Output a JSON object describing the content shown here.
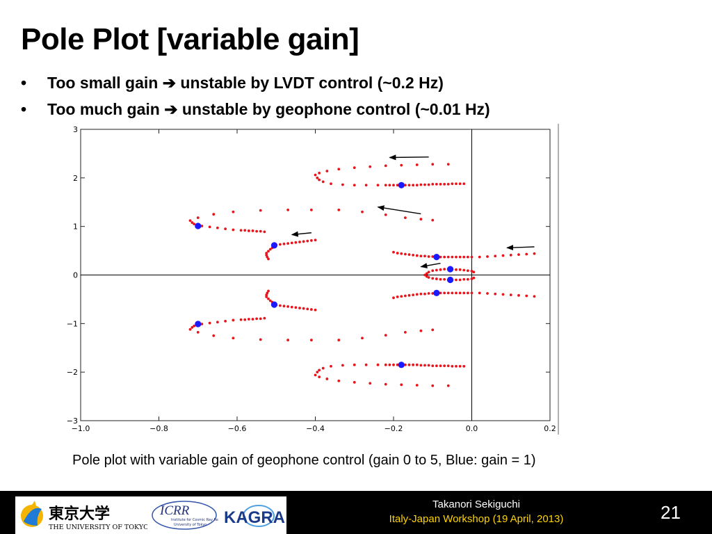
{
  "slide": {
    "title": "Pole Plot [variable gain]",
    "bullets": [
      {
        "before": "Too small gain",
        "after": "unstable by LVDT control (~0.2 Hz)"
      },
      {
        "before": "Too much gain",
        "after": "unstable by geophone control (~0.01 Hz)"
      }
    ],
    "bullet_glyph": "•",
    "arrow_glyph": "➔",
    "caption": "Pole plot with variable gain of geophone control (gain 0 to 5, Blue: gain = 1)"
  },
  "footer": {
    "author": "Takanori Sekiguchi",
    "event": "Italy-Japan Workshop (19 April, 2013)",
    "page": "21",
    "logos": {
      "utokyo_jp": "東京大学",
      "utokyo_en": "THE UNIVERSITY OF TOKYO",
      "icrr": "ICRR",
      "icrr_sub1": "Institute for Cosmic Ray Research",
      "icrr_sub2": "University of Tokyo",
      "kagra": "KAGRA"
    }
  },
  "chart_data": {
    "type": "scatter",
    "title": "",
    "xlabel": "",
    "ylabel": "",
    "xlim": [
      -1.0,
      0.2
    ],
    "ylim": [
      -3,
      3
    ],
    "xticks": [
      -1.0,
      -0.8,
      -0.6,
      -0.4,
      -0.2,
      0.0,
      0.2
    ],
    "xtick_labels": [
      "−1.0",
      "−0.8",
      "−0.6",
      "−0.4",
      "−0.2",
      "0.0",
      "0.2"
    ],
    "yticks": [
      -3,
      -2,
      -1,
      0,
      1,
      2,
      3
    ],
    "ytick_labels": [
      "−3",
      "−2",
      "−1",
      "0",
      "1",
      "2",
      "3"
    ],
    "grid": false,
    "colors": {
      "locus": "#e8141b",
      "gain_one": "#1a1aff",
      "arrow": "#000000",
      "axis": "#000000"
    },
    "series": [
      {
        "marker": "dot",
        "values": [
          [
            -0.4,
            2.06
          ],
          [
            -0.395,
            2.0
          ],
          [
            -0.39,
            1.96
          ],
          [
            -0.38,
            1.92
          ],
          [
            -0.36,
            1.88
          ],
          [
            -0.33,
            1.86
          ],
          [
            -0.3,
            1.85
          ],
          [
            -0.27,
            1.85
          ],
          [
            -0.24,
            1.85
          ],
          [
            -0.22,
            1.85
          ],
          [
            -0.21,
            1.85
          ],
          [
            -0.2,
            1.85
          ],
          [
            -0.19,
            1.85
          ],
          [
            -0.18,
            1.85
          ],
          [
            -0.17,
            1.85
          ],
          [
            -0.16,
            1.85
          ],
          [
            -0.15,
            1.85
          ],
          [
            -0.14,
            1.85
          ],
          [
            -0.13,
            1.86
          ],
          [
            -0.12,
            1.86
          ],
          [
            -0.11,
            1.86
          ],
          [
            -0.1,
            1.87
          ],
          [
            -0.09,
            1.87
          ],
          [
            -0.08,
            1.87
          ],
          [
            -0.07,
            1.87
          ],
          [
            -0.06,
            1.87
          ],
          [
            -0.05,
            1.88
          ],
          [
            -0.04,
            1.88
          ],
          [
            -0.03,
            1.88
          ],
          [
            -0.02,
            1.88
          ],
          [
            -0.39,
            2.1
          ],
          [
            -0.37,
            2.14
          ],
          [
            -0.34,
            2.18
          ],
          [
            -0.3,
            2.21
          ],
          [
            -0.26,
            2.23
          ],
          [
            -0.22,
            2.25
          ],
          [
            -0.18,
            2.26
          ],
          [
            -0.14,
            2.27
          ],
          [
            -0.1,
            2.28
          ],
          [
            -0.06,
            2.28
          ]
        ]
      },
      {
        "marker": "dot",
        "values": [
          [
            -0.4,
            -2.06
          ],
          [
            -0.395,
            -2.0
          ],
          [
            -0.39,
            -1.96
          ],
          [
            -0.38,
            -1.92
          ],
          [
            -0.36,
            -1.88
          ],
          [
            -0.33,
            -1.86
          ],
          [
            -0.3,
            -1.85
          ],
          [
            -0.27,
            -1.85
          ],
          [
            -0.24,
            -1.85
          ],
          [
            -0.22,
            -1.85
          ],
          [
            -0.21,
            -1.85
          ],
          [
            -0.2,
            -1.85
          ],
          [
            -0.19,
            -1.85
          ],
          [
            -0.18,
            -1.85
          ],
          [
            -0.17,
            -1.85
          ],
          [
            -0.16,
            -1.85
          ],
          [
            -0.15,
            -1.85
          ],
          [
            -0.14,
            -1.85
          ],
          [
            -0.13,
            -1.86
          ],
          [
            -0.12,
            -1.86
          ],
          [
            -0.11,
            -1.86
          ],
          [
            -0.1,
            -1.87
          ],
          [
            -0.09,
            -1.87
          ],
          [
            -0.08,
            -1.87
          ],
          [
            -0.07,
            -1.87
          ],
          [
            -0.06,
            -1.87
          ],
          [
            -0.05,
            -1.88
          ],
          [
            -0.04,
            -1.88
          ],
          [
            -0.03,
            -1.88
          ],
          [
            -0.02,
            -1.88
          ],
          [
            -0.39,
            -2.1
          ],
          [
            -0.37,
            -2.14
          ],
          [
            -0.34,
            -2.18
          ],
          [
            -0.3,
            -2.21
          ],
          [
            -0.26,
            -2.23
          ],
          [
            -0.22,
            -2.25
          ],
          [
            -0.18,
            -2.26
          ],
          [
            -0.14,
            -2.27
          ],
          [
            -0.1,
            -2.28
          ],
          [
            -0.06,
            -2.28
          ]
        ]
      },
      {
        "marker": "dot",
        "values": [
          [
            -0.72,
            1.12
          ],
          [
            -0.715,
            1.08
          ],
          [
            -0.71,
            1.05
          ],
          [
            -0.7,
            1.03
          ],
          [
            -0.69,
            1.01
          ],
          [
            -0.67,
            0.99
          ],
          [
            -0.65,
            0.97
          ],
          [
            -0.63,
            0.95
          ],
          [
            -0.61,
            0.93
          ],
          [
            -0.59,
            0.92
          ],
          [
            -0.58,
            0.92
          ],
          [
            -0.57,
            0.91
          ],
          [
            -0.56,
            0.91
          ],
          [
            -0.55,
            0.9
          ],
          [
            -0.54,
            0.9
          ],
          [
            -0.53,
            0.89
          ],
          [
            -0.7,
            1.18
          ],
          [
            -0.66,
            1.25
          ],
          [
            -0.61,
            1.3
          ],
          [
            -0.54,
            1.33
          ],
          [
            -0.47,
            1.34
          ],
          [
            -0.41,
            1.34
          ],
          [
            -0.34,
            1.34
          ],
          [
            -0.28,
            1.3
          ],
          [
            -0.22,
            1.24
          ],
          [
            -0.17,
            1.18
          ],
          [
            -0.13,
            1.15
          ],
          [
            -0.1,
            1.13
          ]
        ]
      },
      {
        "marker": "dot",
        "values": [
          [
            -0.72,
            -1.12
          ],
          [
            -0.715,
            -1.08
          ],
          [
            -0.71,
            -1.05
          ],
          [
            -0.7,
            -1.03
          ],
          [
            -0.69,
            -1.01
          ],
          [
            -0.67,
            -0.99
          ],
          [
            -0.65,
            -0.97
          ],
          [
            -0.63,
            -0.95
          ],
          [
            -0.61,
            -0.93
          ],
          [
            -0.59,
            -0.92
          ],
          [
            -0.58,
            -0.92
          ],
          [
            -0.57,
            -0.91
          ],
          [
            -0.56,
            -0.91
          ],
          [
            -0.55,
            -0.9
          ],
          [
            -0.54,
            -0.9
          ],
          [
            -0.53,
            -0.89
          ],
          [
            -0.7,
            -1.18
          ],
          [
            -0.66,
            -1.25
          ],
          [
            -0.61,
            -1.3
          ],
          [
            -0.54,
            -1.33
          ],
          [
            -0.47,
            -1.34
          ],
          [
            -0.41,
            -1.34
          ],
          [
            -0.34,
            -1.34
          ],
          [
            -0.28,
            -1.3
          ],
          [
            -0.22,
            -1.24
          ],
          [
            -0.17,
            -1.18
          ],
          [
            -0.13,
            -1.15
          ],
          [
            -0.1,
            -1.13
          ]
        ]
      },
      {
        "marker": "dot",
        "values": [
          [
            -0.52,
            0.33
          ],
          [
            -0.523,
            0.37
          ],
          [
            -0.525,
            0.41
          ],
          [
            -0.525,
            0.45
          ],
          [
            -0.52,
            0.49
          ],
          [
            -0.515,
            0.53
          ],
          [
            -0.51,
            0.56
          ],
          [
            -0.505,
            0.59
          ],
          [
            -0.5,
            0.62
          ],
          [
            -0.49,
            0.63
          ],
          [
            -0.48,
            0.64
          ],
          [
            -0.47,
            0.65
          ],
          [
            -0.46,
            0.66
          ],
          [
            -0.45,
            0.67
          ],
          [
            -0.44,
            0.68
          ],
          [
            -0.43,
            0.69
          ],
          [
            -0.42,
            0.7
          ],
          [
            -0.41,
            0.71
          ],
          [
            -0.4,
            0.72
          ]
        ]
      },
      {
        "marker": "dot",
        "values": [
          [
            -0.52,
            -0.33
          ],
          [
            -0.523,
            -0.37
          ],
          [
            -0.525,
            -0.41
          ],
          [
            -0.525,
            -0.45
          ],
          [
            -0.52,
            -0.49
          ],
          [
            -0.515,
            -0.53
          ],
          [
            -0.51,
            -0.56
          ],
          [
            -0.505,
            -0.59
          ],
          [
            -0.5,
            -0.62
          ],
          [
            -0.49,
            -0.63
          ],
          [
            -0.48,
            -0.64
          ],
          [
            -0.47,
            -0.65
          ],
          [
            -0.46,
            -0.66
          ],
          [
            -0.45,
            -0.67
          ],
          [
            -0.44,
            -0.68
          ],
          [
            -0.43,
            -0.69
          ],
          [
            -0.42,
            -0.7
          ],
          [
            -0.41,
            -0.71
          ],
          [
            -0.4,
            -0.72
          ]
        ]
      },
      {
        "marker": "dot",
        "values": [
          [
            -0.2,
            0.47
          ],
          [
            -0.19,
            0.45
          ],
          [
            -0.18,
            0.44
          ],
          [
            -0.17,
            0.43
          ],
          [
            -0.16,
            0.42
          ],
          [
            -0.15,
            0.41
          ],
          [
            -0.14,
            0.4
          ],
          [
            -0.13,
            0.39
          ],
          [
            -0.12,
            0.39
          ],
          [
            -0.11,
            0.38
          ],
          [
            -0.1,
            0.38
          ],
          [
            -0.09,
            0.37
          ],
          [
            -0.08,
            0.37
          ],
          [
            -0.07,
            0.37
          ],
          [
            -0.06,
            0.37
          ],
          [
            -0.05,
            0.37
          ],
          [
            -0.04,
            0.37
          ],
          [
            -0.03,
            0.37
          ],
          [
            -0.02,
            0.37
          ],
          [
            -0.01,
            0.37
          ],
          [
            0.0,
            0.37
          ],
          [
            0.02,
            0.37
          ],
          [
            0.04,
            0.38
          ],
          [
            0.06,
            0.39
          ],
          [
            0.08,
            0.4
          ],
          [
            0.1,
            0.41
          ],
          [
            0.12,
            0.42
          ],
          [
            0.14,
            0.43
          ],
          [
            0.16,
            0.44
          ]
        ]
      },
      {
        "marker": "dot",
        "values": [
          [
            -0.2,
            -0.47
          ],
          [
            -0.19,
            -0.45
          ],
          [
            -0.18,
            -0.44
          ],
          [
            -0.17,
            -0.43
          ],
          [
            -0.16,
            -0.42
          ],
          [
            -0.15,
            -0.41
          ],
          [
            -0.14,
            -0.4
          ],
          [
            -0.13,
            -0.39
          ],
          [
            -0.12,
            -0.39
          ],
          [
            -0.11,
            -0.38
          ],
          [
            -0.1,
            -0.38
          ],
          [
            -0.09,
            -0.37
          ],
          [
            -0.08,
            -0.37
          ],
          [
            -0.07,
            -0.37
          ],
          [
            -0.06,
            -0.37
          ],
          [
            -0.05,
            -0.37
          ],
          [
            -0.04,
            -0.37
          ],
          [
            -0.03,
            -0.37
          ],
          [
            -0.02,
            -0.37
          ],
          [
            -0.01,
            -0.37
          ],
          [
            0.0,
            -0.37
          ],
          [
            0.02,
            -0.37
          ],
          [
            0.04,
            -0.38
          ],
          [
            0.06,
            -0.39
          ],
          [
            0.08,
            -0.4
          ],
          [
            0.1,
            -0.41
          ],
          [
            0.12,
            -0.42
          ],
          [
            0.14,
            -0.43
          ],
          [
            0.16,
            -0.44
          ]
        ]
      },
      {
        "marker": "dot",
        "values": [
          [
            0.005,
            0.06
          ],
          [
            0.0,
            0.08
          ],
          [
            -0.01,
            0.09
          ],
          [
            -0.02,
            0.1
          ],
          [
            -0.03,
            0.11
          ],
          [
            -0.04,
            0.11
          ],
          [
            -0.05,
            0.12
          ],
          [
            -0.06,
            0.12
          ],
          [
            -0.07,
            0.12
          ],
          [
            -0.08,
            0.11
          ],
          [
            -0.09,
            0.1
          ],
          [
            -0.1,
            0.09
          ],
          [
            -0.11,
            0.06
          ],
          [
            -0.115,
            0.03
          ],
          [
            -0.12,
            0.0
          ],
          [
            -0.115,
            -0.03
          ],
          [
            -0.11,
            -0.05
          ],
          [
            -0.1,
            -0.07
          ],
          [
            -0.09,
            -0.08
          ],
          [
            -0.08,
            -0.09
          ],
          [
            -0.07,
            -0.09
          ],
          [
            -0.06,
            -0.1
          ],
          [
            -0.05,
            -0.1
          ],
          [
            -0.04,
            -0.1
          ],
          [
            -0.03,
            -0.1
          ],
          [
            -0.02,
            -0.09
          ],
          [
            -0.01,
            -0.09
          ],
          [
            0.0,
            -0.08
          ],
          [
            0.005,
            -0.06
          ]
        ]
      }
    ],
    "gain_one_points": [
      [
        -0.18,
        1.85
      ],
      [
        -0.18,
        -1.85
      ],
      [
        -0.7,
        1.01
      ],
      [
        -0.7,
        -1.01
      ],
      [
        -0.505,
        0.61
      ],
      [
        -0.505,
        -0.61
      ],
      [
        -0.09,
        0.37
      ],
      [
        -0.09,
        -0.37
      ],
      [
        -0.055,
        0.12
      ],
      [
        -0.055,
        -0.1
      ]
    ],
    "arrows": [
      [
        [
          -0.11,
          2.43
        ],
        [
          -0.21,
          2.42
        ]
      ],
      [
        [
          -0.13,
          1.26
        ],
        [
          -0.24,
          1.4
        ]
      ],
      [
        [
          -0.41,
          0.87
        ],
        [
          -0.46,
          0.83
        ]
      ],
      [
        [
          0.16,
          0.58
        ],
        [
          0.09,
          0.56
        ]
      ],
      [
        [
          -0.08,
          0.24
        ],
        [
          -0.13,
          0.17
        ]
      ]
    ]
  }
}
